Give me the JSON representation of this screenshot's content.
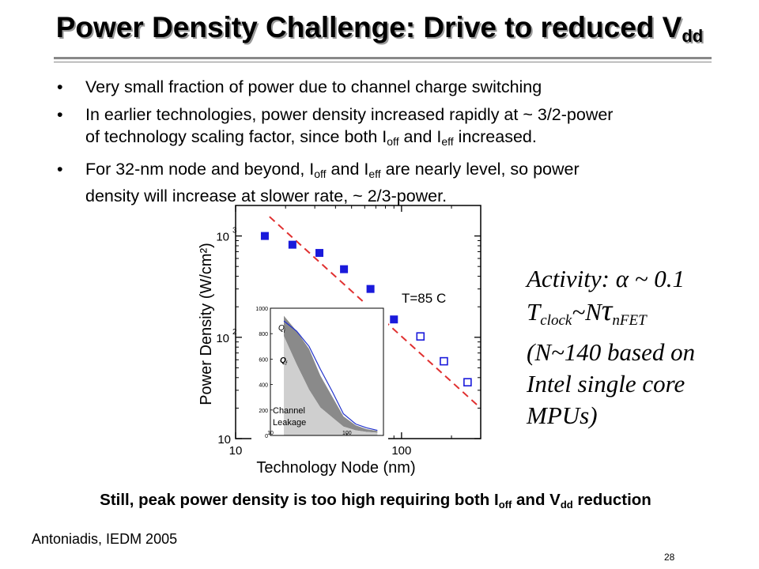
{
  "slide": {
    "title_main": "Power Density Challenge: Drive to reduced V",
    "title_sub": "dd",
    "bullets": {
      "b1": "Very small fraction of power due to channel charge switching",
      "b2_a": "In earlier technologies, power density increased rapidly at ~ 3/2-power",
      "b2_b": "of technology scaling factor, since both I",
      "b2_sub1": "off",
      "b2_c": " and I",
      "b2_sub2": "eff",
      "b2_d": " increased.",
      "b3_a": "For 32-nm node and beyond, I",
      "b3_sub1": "off",
      "b3_b": " and I",
      "b3_sub2": "eff",
      "b3_c": " are nearly level, so power",
      "b3_d": "density will increase at slower rate, ~ 2/3-power."
    },
    "activity": {
      "line1": "Activity: α ~ 0.1",
      "line2_a": "T",
      "line2_sub1": "clock",
      "line2_b": "~N",
      "line2_tau": "τ",
      "line2_sub2": "nFET",
      "line3": "(N~140 based on",
      "line4": "Intel single core",
      "line5": "MPUs)"
    },
    "conclusion_a": "Still,  peak power density is too high requiring both I",
    "conclusion_sub1": "off",
    "conclusion_b": " and V",
    "conclusion_sub2": "dd",
    "conclusion_c": " reduction",
    "citation": "Antoniadis, IEDM 2005",
    "page_number": "28"
  },
  "chart_data": [
    {
      "type": "scatter",
      "xlabel": "Technology Node (nm)",
      "ylabel": "Power Density (W/cm²)",
      "xscale": "log",
      "yscale": "log",
      "xlim": [
        10,
        300
      ],
      "ylim": [
        10,
        2000
      ],
      "x_ticks": [
        "10",
        "100"
      ],
      "y_ticks": [
        "10",
        "10 2",
        "10 3"
      ],
      "annotation": "T=85 C",
      "series": [
        {
          "marker": "filled-square",
          "color": "#1a1adb",
          "x": [
            15,
            22,
            32,
            45,
            65,
            90
          ],
          "y": [
            1000,
            820,
            680,
            470,
            300,
            150
          ]
        },
        {
          "marker": "open-square",
          "color": "#1a1adb",
          "x": [
            130,
            180,
            250
          ],
          "y": [
            102,
            58,
            36
          ]
        }
      ],
      "fit_line": {
        "style": "dashed",
        "color": "#e03030",
        "x": [
          16,
          290
        ],
        "y": [
          1550,
          21
        ]
      },
      "inset": {
        "x_ticks": [
          "10",
          "100"
        ],
        "y_ticks": [
          "0",
          "200",
          "400",
          "600",
          "800",
          "1000"
        ],
        "xlim": [
          10,
          300
        ],
        "ylim": [
          0,
          1000
        ],
        "labels": {
          "qi": "Q",
          "qi_sub": "i",
          "qf": "Q",
          "qf_sub": "f",
          "leak1": "Channel",
          "leak2": "Leakage"
        },
        "total_curve": {
          "x": [
            15,
            22,
            32,
            45,
            65,
            90,
            130,
            180,
            250
          ],
          "y": [
            900,
            820,
            700,
            520,
            340,
            170,
            90,
            60,
            40
          ]
        },
        "qf_upper": {
          "x": [
            15,
            22,
            32,
            45,
            65,
            90,
            130,
            180,
            250
          ],
          "y": [
            940,
            820,
            680,
            470,
            300,
            150,
            80,
            50,
            35
          ]
        },
        "leak_upper": {
          "x": [
            15,
            22,
            32,
            45,
            65,
            90,
            130,
            180,
            250
          ],
          "y": [
            780,
            560,
            360,
            220,
            140,
            70,
            40,
            28,
            22
          ]
        }
      }
    }
  ]
}
